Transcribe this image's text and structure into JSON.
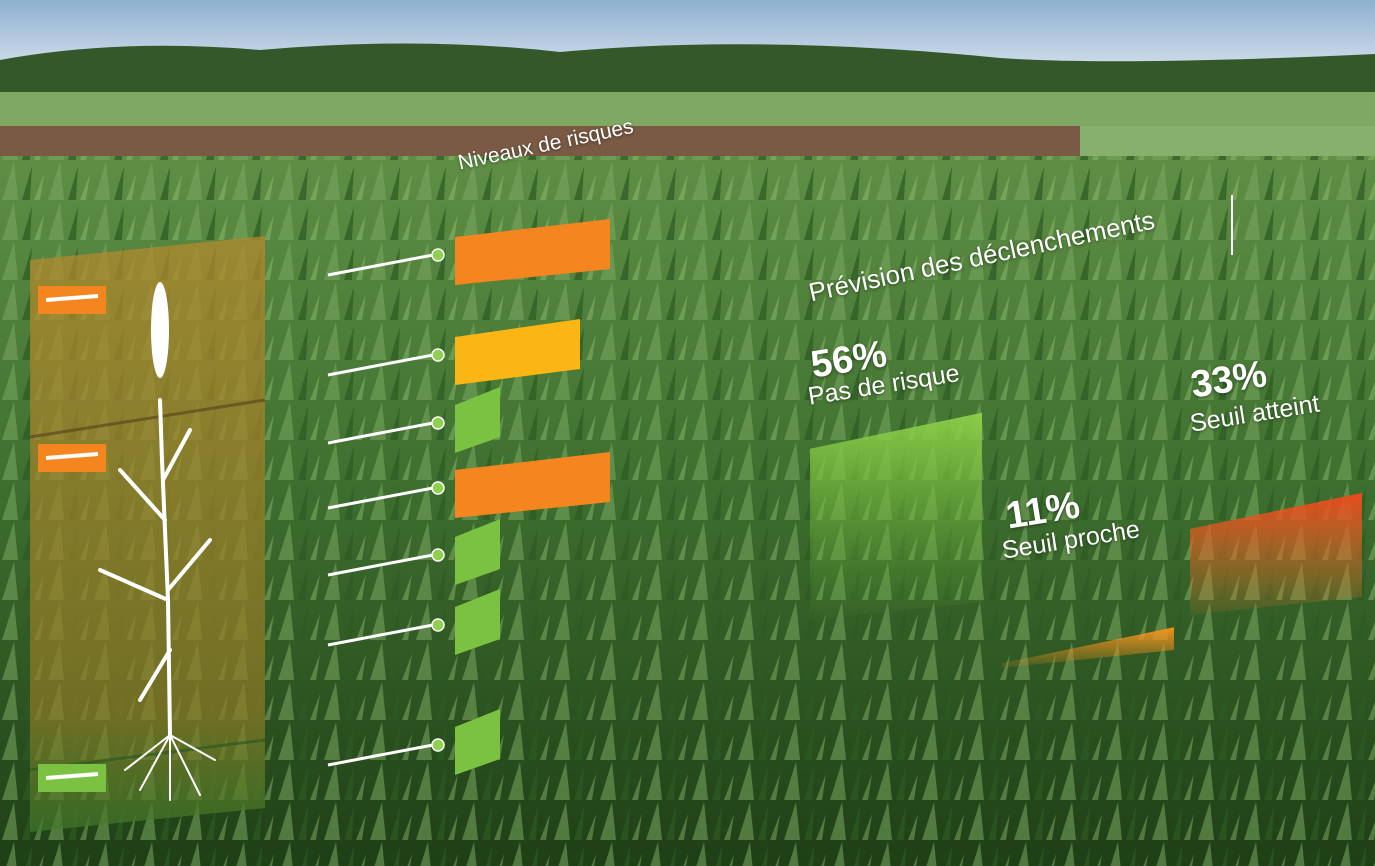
{
  "colors": {
    "orange": "#f5851f",
    "yellow": "#fbb515",
    "green": "#7cc242",
    "red": "#ec5a24",
    "white": "#ffffff"
  },
  "risk_panel": {
    "title": "Niveaux de risques",
    "levels": [
      "orange",
      "yellow",
      "green",
      "orange",
      "green",
      "green",
      "green"
    ]
  },
  "plant_panel": {
    "markers": [
      "orange",
      "orange",
      "green"
    ]
  },
  "chart_data": {
    "type": "bar",
    "title": "Prévision des déclenchements",
    "categories": [
      "Pas de risque",
      "Seuil proche",
      "Seuil atteint"
    ],
    "values": [
      56,
      11,
      33
    ],
    "value_labels": [
      "56%",
      "11%",
      "33%"
    ],
    "colors": [
      "#7cc242",
      "#f5851f",
      "#ec5a24"
    ]
  }
}
